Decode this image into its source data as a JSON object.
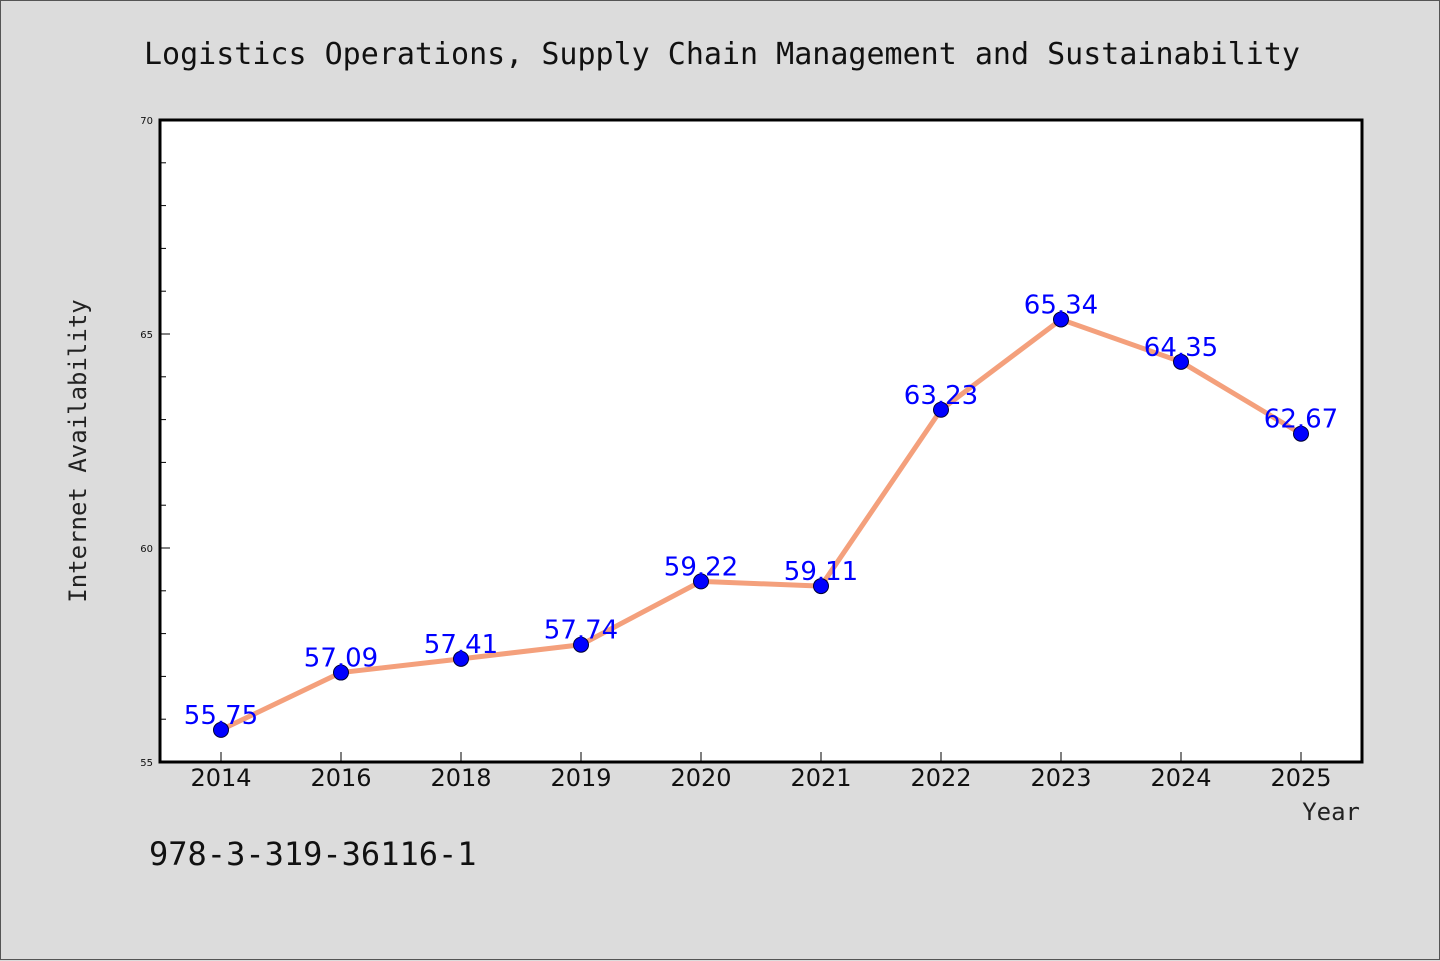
{
  "chart_data": {
    "type": "line",
    "title": "Logistics Operations, Supply Chain Management and Sustainability",
    "xlabel": "Year",
    "ylabel": "Internet Availability",
    "categories": [
      "2014",
      "2016",
      "2018",
      "2019",
      "2020",
      "2021",
      "2022",
      "2023",
      "2024",
      "2025"
    ],
    "series": [
      {
        "values": [
          55.75,
          57.09,
          57.41,
          57.74,
          59.22,
          59.11,
          63.23,
          65.34,
          64.35,
          62.67
        ],
        "color": "#f4a07c",
        "marker_color": "#0000ff"
      }
    ],
    "data_labels": [
      "55.75",
      "57.09",
      "57.41",
      "57.74",
      "59.22",
      "59.11",
      "63.23",
      "65.34",
      "64.35",
      "62.67"
    ],
    "ylim": [
      55,
      70
    ],
    "yticks": [
      "55",
      "60",
      "65",
      "70"
    ],
    "grid": false,
    "legend": "none"
  },
  "footer": {
    "isbn": "978-3-319-36116-1"
  },
  "colors": {
    "background": "#dcdcdc",
    "plot_background": "#ffffff",
    "line": "#f4a07c",
    "marker": "#0000ff",
    "data_label": "#0000ff"
  }
}
